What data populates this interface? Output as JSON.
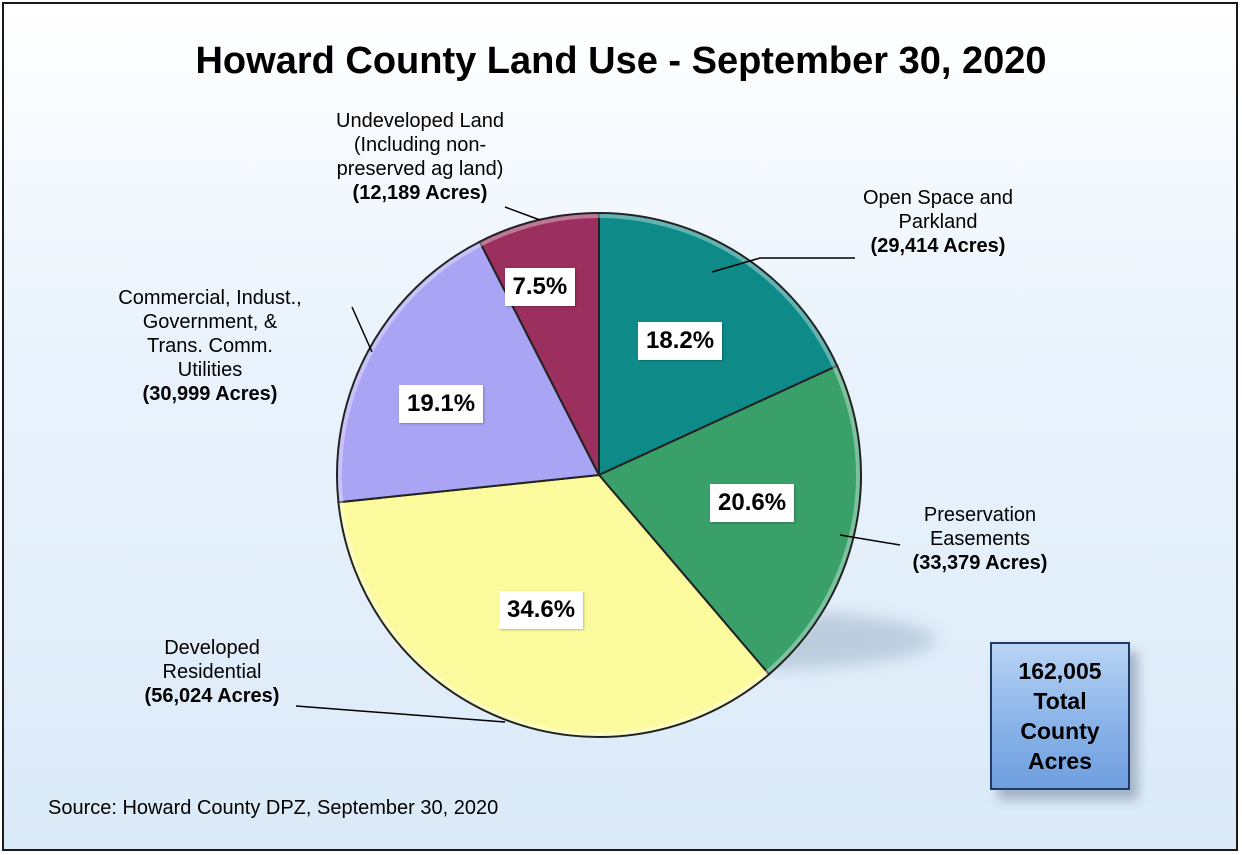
{
  "chart_data": {
    "type": "pie",
    "title": "Howard County Land Use - September 30, 2020",
    "categories": [
      {
        "name": "Open Space and Parkland",
        "name_lines": [
          "Open Space and",
          "Parkland"
        ],
        "acres_label": "(29,414 Acres)",
        "value": 29414,
        "percent_label": "18.2%",
        "color": "#0e8a89"
      },
      {
        "name": "Preservation Easements",
        "name_lines": [
          "Preservation",
          "Easements"
        ],
        "acres_label": "(33,379 Acres)",
        "value": 33379,
        "percent_label": "20.6%",
        "color": "#3aa06a"
      },
      {
        "name": "Developed Residential",
        "name_lines": [
          "Developed",
          "Residential"
        ],
        "acres_label": "(56,024 Acres)",
        "value": 56024,
        "percent_label": "34.6%",
        "color": "#fbfa9c"
      },
      {
        "name": "Commercial, Indust., Government, & Trans. Comm. Utilities",
        "name_lines": [
          "Commercial, Indust.,",
          "Government, &",
          "Trans. Comm.",
          "Utilities"
        ],
        "acres_label": "(30,999 Acres)",
        "value": 30999,
        "percent_label": "19.1%",
        "color": "#a9a4f4"
      },
      {
        "name": "Undeveloped Land (Including non-preserved ag land)",
        "name_lines": [
          "Undeveloped Land",
          "(Including non-",
          "preserved ag land)"
        ],
        "acres_label": "(12,189 Acres)",
        "value": 12189,
        "percent_label": "7.5%",
        "color": "#9b2f5e"
      }
    ],
    "start_angle_deg": 0,
    "direction": "clockwise"
  },
  "total_box": {
    "text": "162,005\nTotal\nCounty\nAcres"
  },
  "source": "Source:  Howard County DPZ, September 30, 2020"
}
